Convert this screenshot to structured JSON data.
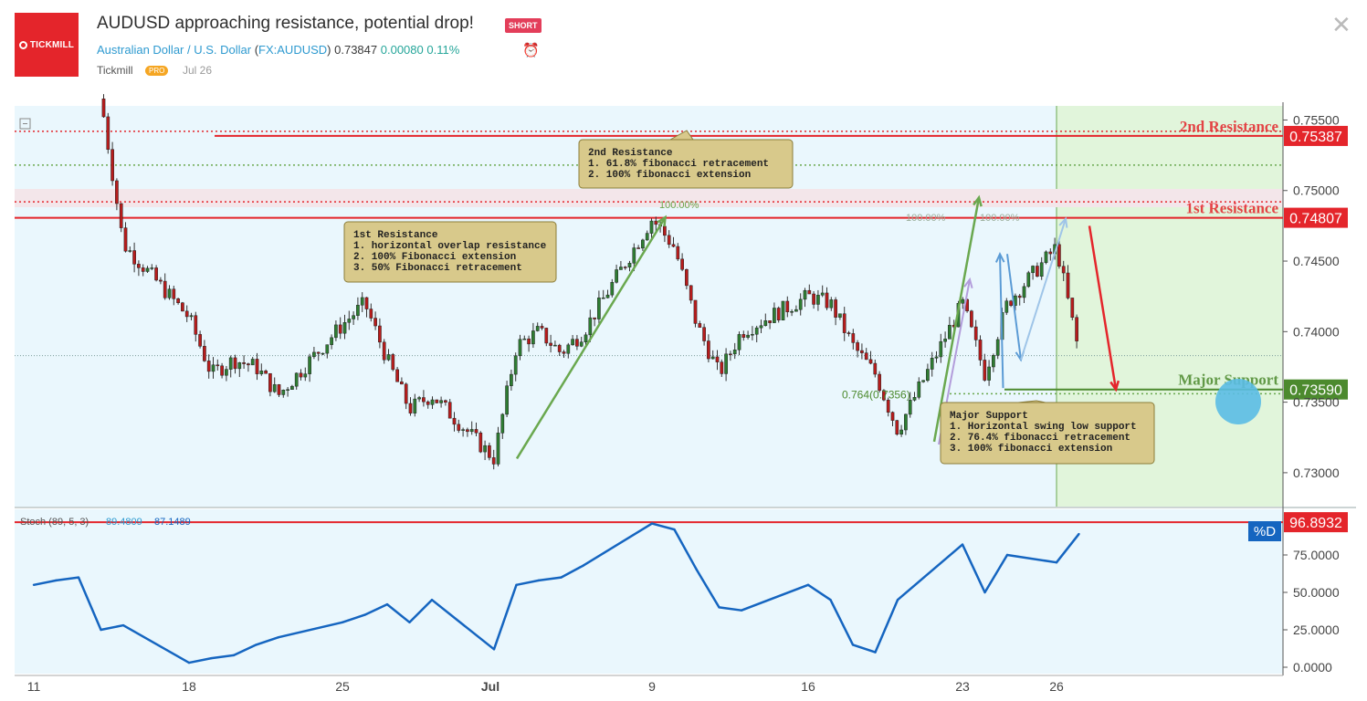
{
  "header": {
    "logo_text": "TICKMILL",
    "title": "AUDUSD approaching resistance, potential drop!",
    "badge": "SHORT",
    "symbol_name": "Australian Dollar / U.S. Dollar",
    "symbol_code": "FX:AUDUSD",
    "price": "0.73847",
    "change": "0.00080",
    "change_pct": "0.11%",
    "author": "Tickmill",
    "author_badge": "PRO",
    "date": "Jul 26"
  },
  "colors": {
    "resistance": "#e4252b",
    "support": "#4c8a2e",
    "stoch": "#1565c0",
    "candle_up": "#2e7d32",
    "candle_down": "#b71c1c",
    "panel_bg": "#eaf7fd",
    "projection_bg": "#e1f5db"
  },
  "chart_data": {
    "type": "candlestick",
    "x_tick_labels": [
      "11",
      "18",
      "25",
      "Jul",
      "9",
      "16",
      "23",
      "26"
    ],
    "y_tick_labels": [
      "0.75500",
      "0.75000",
      "0.74500",
      "0.74000",
      "0.73500",
      "0.73000"
    ],
    "ylim": [
      0.7276,
      0.756
    ],
    "grid": false,
    "levels": [
      {
        "name": "2nd Resistance",
        "value": 0.75387,
        "label": "0.75387",
        "color": "#e4252b"
      },
      {
        "name": "1st Resistance",
        "value": 0.74807,
        "label": "0.74807",
        "color": "#e4252b"
      },
      {
        "name": "Major Support",
        "value": 0.7359,
        "label": "0.73590",
        "color": "#4c8a2e"
      }
    ],
    "fib_labels": [
      "100.00%",
      "100.00%",
      "100.00%",
      "0.764(0.7356)"
    ],
    "annotations": [
      {
        "lines": [
          "2nd Resistance",
          "1. 61.8% fibonacci retracement",
          "2. 100% fibonacci extension"
        ]
      },
      {
        "lines": [
          "1st Resistance",
          "1. horizontal overlap resistance",
          "2. 100% Fibonacci extension",
          "3. 50% Fibonacci retracement"
        ]
      },
      {
        "lines": [
          "Major Support",
          "1. Horizontal swing low support",
          "2. 76.4% fibonacci retracement",
          "3. 100% fibonacci extension"
        ]
      }
    ],
    "price_path": [
      {
        "date": "Jun 14",
        "close": 0.7565
      },
      {
        "date": "Jun 15",
        "close": 0.7462
      },
      {
        "date": "Jun 18",
        "close": 0.741
      },
      {
        "date": "Jun 19",
        "close": 0.737
      },
      {
        "date": "Jun 20",
        "close": 0.738
      },
      {
        "date": "Jun 21",
        "close": 0.7375
      },
      {
        "date": "Jun 22",
        "close": 0.7355
      },
      {
        "date": "Jun 25",
        "close": 0.7405
      },
      {
        "date": "Jun 26",
        "close": 0.742
      },
      {
        "date": "Jun 27",
        "close": 0.738
      },
      {
        "date": "Jun 28",
        "close": 0.7345
      },
      {
        "date": "Jun 29",
        "close": 0.7355
      },
      {
        "date": "Jul 2",
        "close": 0.731
      },
      {
        "date": "Jul 3",
        "close": 0.739
      },
      {
        "date": "Jul 4",
        "close": 0.74
      },
      {
        "date": "Jul 5",
        "close": 0.7385
      },
      {
        "date": "Jul 6",
        "close": 0.74
      },
      {
        "date": "Jul 9",
        "close": 0.748
      },
      {
        "date": "Jul 10",
        "close": 0.746
      },
      {
        "date": "Jul 11",
        "close": 0.7405
      },
      {
        "date": "Jul 12",
        "close": 0.737
      },
      {
        "date": "Jul 13",
        "close": 0.74
      },
      {
        "date": "Jul 16",
        "close": 0.7425
      },
      {
        "date": "Jul 17",
        "close": 0.742
      },
      {
        "date": "Jul 18",
        "close": 0.739
      },
      {
        "date": "Jul 19",
        "close": 0.737
      },
      {
        "date": "Jul 20",
        "close": 0.733
      },
      {
        "date": "Jul 23",
        "close": 0.742
      },
      {
        "date": "Jul 24",
        "close": 0.737
      },
      {
        "date": "Jul 25",
        "close": 0.742
      },
      {
        "date": "Jul 26",
        "close": 0.746
      },
      {
        "date": "Jul 27",
        "close": 0.7385
      }
    ],
    "projection": [
      {
        "date": "Jul 27",
        "value": 0.7475
      },
      {
        "date": "Jul 30",
        "value": 0.7359
      }
    ]
  },
  "stoch": {
    "label": "Stoch (89, 5, 3)",
    "k_value": "89.4809",
    "d_value": "87.1489",
    "current": "96.8932",
    "tag": "%D",
    "y_tick_labels": [
      "75.0000",
      "50.0000",
      "25.0000",
      "0.0000"
    ],
    "ylim": [
      0,
      100
    ],
    "points": [
      {
        "date": "Jun 11",
        "value": 55
      },
      {
        "date": "Jun 12",
        "value": 58
      },
      {
        "date": "Jun 13",
        "value": 60
      },
      {
        "date": "Jun 14",
        "value": 25
      },
      {
        "date": "Jun 15",
        "value": 28
      },
      {
        "date": "Jun 18",
        "value": 3
      },
      {
        "date": "Jun 19",
        "value": 6
      },
      {
        "date": "Jun 20",
        "value": 8
      },
      {
        "date": "Jun 21",
        "value": 15
      },
      {
        "date": "Jun 22",
        "value": 20
      },
      {
        "date": "Jun 25",
        "value": 30
      },
      {
        "date": "Jun 26",
        "value": 35
      },
      {
        "date": "Jun 27",
        "value": 42
      },
      {
        "date": "Jun 28",
        "value": 30
      },
      {
        "date": "Jun 29",
        "value": 45
      },
      {
        "date": "Jul 2",
        "value": 12
      },
      {
        "date": "Jul 3",
        "value": 55
      },
      {
        "date": "Jul 4",
        "value": 58
      },
      {
        "date": "Jul 5",
        "value": 60
      },
      {
        "date": "Jul 6",
        "value": 68
      },
      {
        "date": "Jul 9",
        "value": 96
      },
      {
        "date": "Jul 10",
        "value": 92
      },
      {
        "date": "Jul 11",
        "value": 65
      },
      {
        "date": "Jul 12",
        "value": 40
      },
      {
        "date": "Jul 13",
        "value": 38
      },
      {
        "date": "Jul 16",
        "value": 55
      },
      {
        "date": "Jul 17",
        "value": 45
      },
      {
        "date": "Jul 18",
        "value": 15
      },
      {
        "date": "Jul 19",
        "value": 10
      },
      {
        "date": "Jul 20",
        "value": 45
      },
      {
        "date": "Jul 23",
        "value": 82
      },
      {
        "date": "Jul 24",
        "value": 50
      },
      {
        "date": "Jul 25",
        "value": 75
      },
      {
        "date": "Jul 26",
        "value": 70
      },
      {
        "date": "Jul 27",
        "value": 89
      }
    ]
  }
}
